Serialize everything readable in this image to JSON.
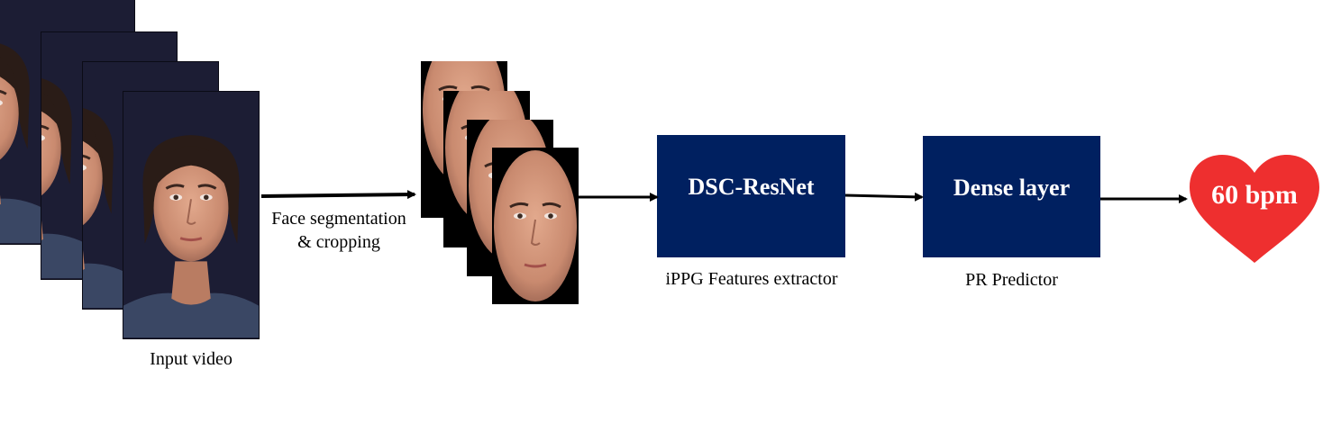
{
  "input": {
    "caption": "Input video",
    "frame_count": 4
  },
  "segmentation": {
    "caption_line1": "Face segmentation",
    "caption_line2": "& cropping",
    "frame_count": 4
  },
  "extractor": {
    "title": "DSC-ResNet",
    "caption": "iPPG Features extractor"
  },
  "predictor": {
    "title": "Dense layer",
    "caption": "PR Predictor"
  },
  "output": {
    "value": "60 bpm"
  },
  "colors": {
    "block_fill": "#002060",
    "heart_fill": "#ee2f2f",
    "arrow": "#000000",
    "video_background": "#1c1d34"
  }
}
